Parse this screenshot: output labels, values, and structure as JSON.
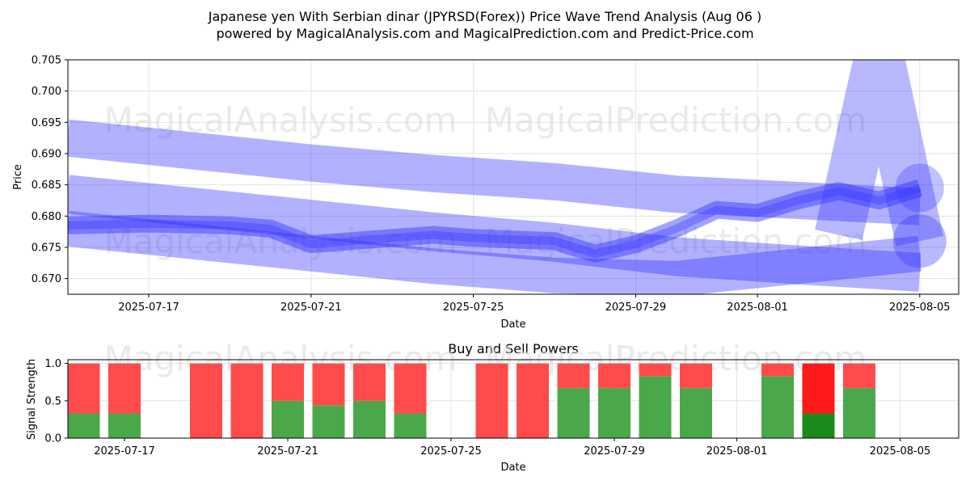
{
  "title_line1": "Japanese yen With Serbian dinar (JPYRSD(Forex)) Price Wave Trend Analysis (Aug 06 )",
  "title_line2": "powered by MagicalAnalysis.com and MagicalPrediction.com and Predict-Price.com",
  "watermarks": [
    "MagicalAnalysis.com",
    "MagicalPrediction.com"
  ],
  "chart_data": [
    {
      "type": "area",
      "xlabel": "Date",
      "ylabel": "Price",
      "ylim": [
        0.6675,
        0.705
      ],
      "y_ticks": [
        0.67,
        0.675,
        0.68,
        0.685,
        0.69,
        0.695,
        0.7,
        0.705
      ],
      "x_ticks": [
        "2025-07-17",
        "2025-07-21",
        "2025-07-25",
        "2025-07-29",
        "2025-08-01",
        "2025-08-05"
      ],
      "grid": true,
      "series": [
        {
          "x": [
            "2025-07-15",
            "2025-07-18",
            "2025-07-21",
            "2025-07-24",
            "2025-07-27",
            "2025-07-30",
            "2025-08-02",
            "2025-08-05"
          ],
          "values": [
            0.6925,
            0.6905,
            0.6885,
            0.6868,
            0.6855,
            0.6835,
            0.6825,
            0.6815
          ]
        },
        {
          "x": [
            "2025-07-15",
            "2025-07-18",
            "2025-07-21",
            "2025-07-24",
            "2025-07-27",
            "2025-07-30",
            "2025-08-02",
            "2025-08-05"
          ],
          "values": [
            0.6835,
            0.6815,
            0.6795,
            0.6775,
            0.6758,
            0.6735,
            0.6722,
            0.671
          ]
        },
        {
          "x": [
            "2025-07-15",
            "2025-07-18",
            "2025-07-21",
            "2025-07-24",
            "2025-07-27",
            "2025-07-30",
            "2025-08-02",
            "2025-08-05"
          ],
          "values": [
            0.678,
            0.676,
            0.674,
            0.672,
            0.6705,
            0.67,
            0.672,
            0.674
          ]
        },
        {
          "x": [
            "2025-07-15",
            "2025-07-17",
            "2025-07-19",
            "2025-07-20",
            "2025-07-21",
            "2025-07-23",
            "2025-07-24",
            "2025-07-25",
            "2025-07-27",
            "2025-07-28",
            "2025-07-29",
            "2025-07-30",
            "2025-07-31",
            "2025-08-01",
            "2025-08-02",
            "2025-08-03",
            "2025-08-04",
            "2025-08-05"
          ],
          "values": [
            0.6785,
            0.6788,
            0.6785,
            0.678,
            0.6755,
            0.6765,
            0.677,
            0.6765,
            0.676,
            0.674,
            0.6755,
            0.678,
            0.681,
            0.6805,
            0.6825,
            0.684,
            0.6825,
            0.6845
          ]
        }
      ],
      "spike": {
        "x": [
          "2025-08-03",
          "2025-08-04",
          "2025-08-05"
        ],
        "values": [
          0.677,
          0.706,
          0.676
        ]
      }
    },
    {
      "type": "bar",
      "title": "Buy and Sell Powers",
      "xlabel": "Date",
      "ylabel": "Signal Strength",
      "ylim": [
        0,
        1.05
      ],
      "y_ticks": [
        0.0,
        0.5,
        1.0
      ],
      "x_ticks": [
        "2025-07-17",
        "2025-07-21",
        "2025-07-25",
        "2025-07-29",
        "2025-08-01",
        "2025-08-05"
      ],
      "categories": [
        "2025-07-16",
        "2025-07-17",
        "2025-07-19",
        "2025-07-20",
        "2025-07-21",
        "2025-07-22",
        "2025-07-23",
        "2025-07-24",
        "2025-07-26",
        "2025-07-27",
        "2025-07-28",
        "2025-07-29",
        "2025-07-30",
        "2025-07-31",
        "2025-08-02",
        "2025-08-03",
        "2025-08-04"
      ],
      "series": [
        {
          "values": [
            0.33,
            0.33,
            0.0,
            0.0,
            0.5,
            0.44,
            0.5,
            0.33,
            0.0,
            0.0,
            0.67,
            0.67,
            0.83,
            0.67,
            0.83,
            0.33,
            0.67
          ]
        },
        {
          "values": [
            0.67,
            0.67,
            1.0,
            1.0,
            0.5,
            0.56,
            0.5,
            0.67,
            1.0,
            1.0,
            0.33,
            0.33,
            0.17,
            0.33,
            0.17,
            0.67,
            0.33
          ]
        }
      ],
      "highlight_index": 15,
      "colors": {
        "buy": "#4aa84a",
        "sell": "#ff4b4b",
        "buy_highlight": "#1a8a1a",
        "sell_highlight": "#ff1a1a"
      }
    }
  ],
  "colors": {
    "band": "#3333ff",
    "grid": "#e3e3e3"
  }
}
